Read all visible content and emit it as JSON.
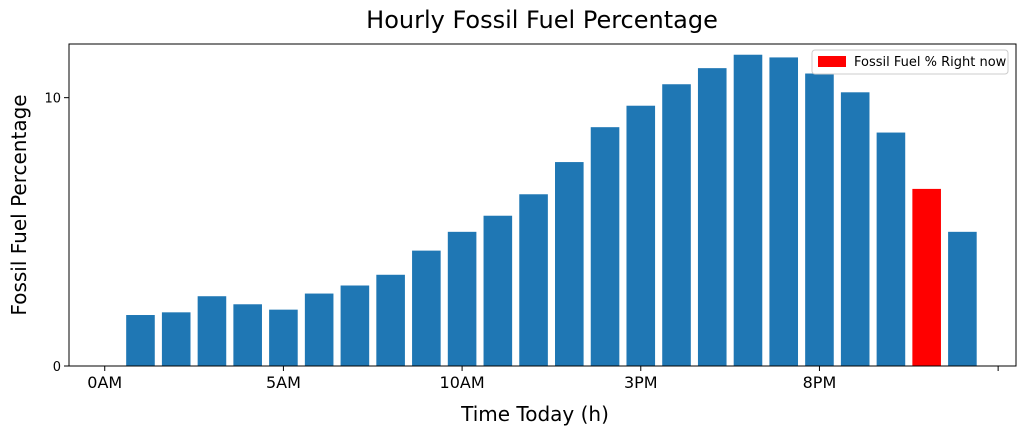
{
  "chart_data": {
    "type": "bar",
    "title": "Hourly Fossil Fuel Percentage",
    "xlabel": "Time Today (h)",
    "ylabel": "Fossil Fuel Percentage",
    "x_tick_labels": [
      "0AM",
      "5AM",
      "10AM",
      "3PM",
      "8PM"
    ],
    "y_tick_labels": [
      "0",
      "10"
    ],
    "ylim": [
      0,
      12
    ],
    "hours": [
      1,
      2,
      3,
      4,
      5,
      6,
      7,
      8,
      9,
      10,
      11,
      12,
      13,
      14,
      15,
      16,
      17,
      18,
      19,
      20,
      21,
      22,
      23,
      24
    ],
    "values": [
      1.9,
      2.0,
      2.6,
      2.3,
      2.1,
      2.7,
      3.0,
      3.4,
      4.3,
      5.0,
      5.6,
      6.4,
      7.6,
      8.9,
      9.7,
      10.5,
      11.1,
      11.6,
      11.5,
      10.9,
      10.2,
      8.7,
      6.6,
      5.0
    ],
    "highlight_hour": 23,
    "legend": {
      "label": "Fossil Fuel % Right now",
      "placement": "upper right"
    },
    "colors": {
      "bar": "#1f77b4",
      "highlight": "#ff0000",
      "axis": "#000000"
    }
  }
}
